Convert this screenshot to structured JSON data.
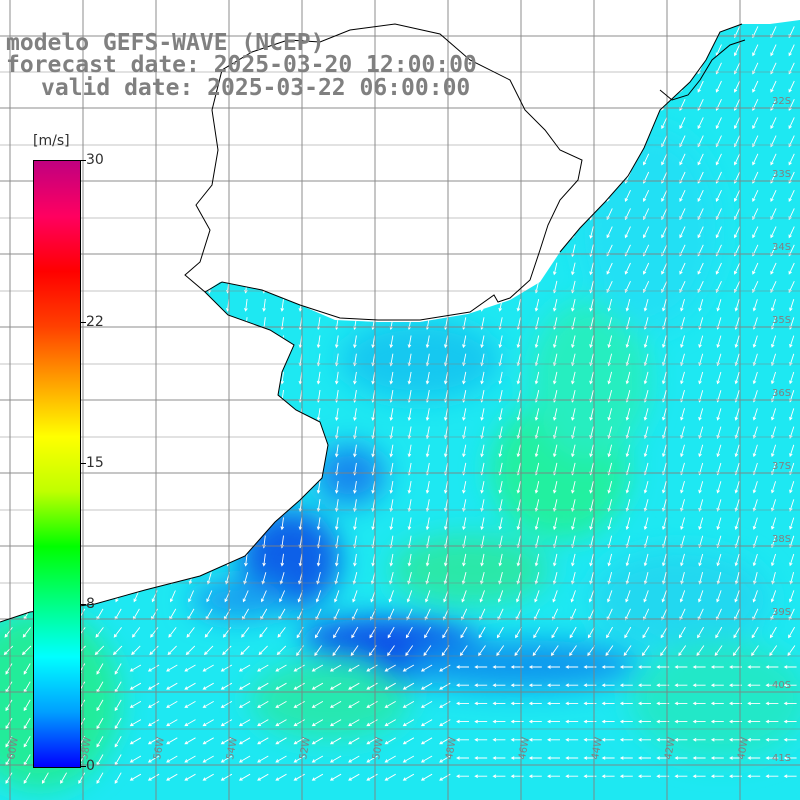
{
  "title": {
    "line1": "modelo GEFS-WAVE (NCEP)",
    "line2": "forecast date: 2025-03-20 12:00:00",
    "line3": "valid date: 2025-03-22 06:00:00"
  },
  "colorbar": {
    "unit": "[m/s]",
    "ticks": [
      "30",
      "22",
      "15",
      "8",
      "0"
    ],
    "tick_values": [
      30,
      22,
      15,
      8,
      0
    ],
    "min": 0,
    "max": 30,
    "colors": [
      "#0000ff",
      "#00a0ff",
      "#00ffff",
      "#00ff80",
      "#00ff00",
      "#c0ff00",
      "#ffff00",
      "#ffa000",
      "#ff4000",
      "#ff0000",
      "#ff0060",
      "#c00080"
    ]
  },
  "grid": {
    "lon_labels": [
      "60W",
      "58W",
      "56W",
      "54W",
      "52W",
      "50W",
      "48W",
      "46W",
      "44W",
      "42W",
      "40W"
    ],
    "lat_labels": [
      "32S",
      "33S",
      "34S",
      "35S",
      "36S",
      "37S",
      "38S",
      "39S",
      "40S",
      "41S"
    ]
  },
  "colors": {
    "land": "#ffffff",
    "coast": "#000000",
    "grid": "#808080",
    "arrows": "#ffffff"
  }
}
